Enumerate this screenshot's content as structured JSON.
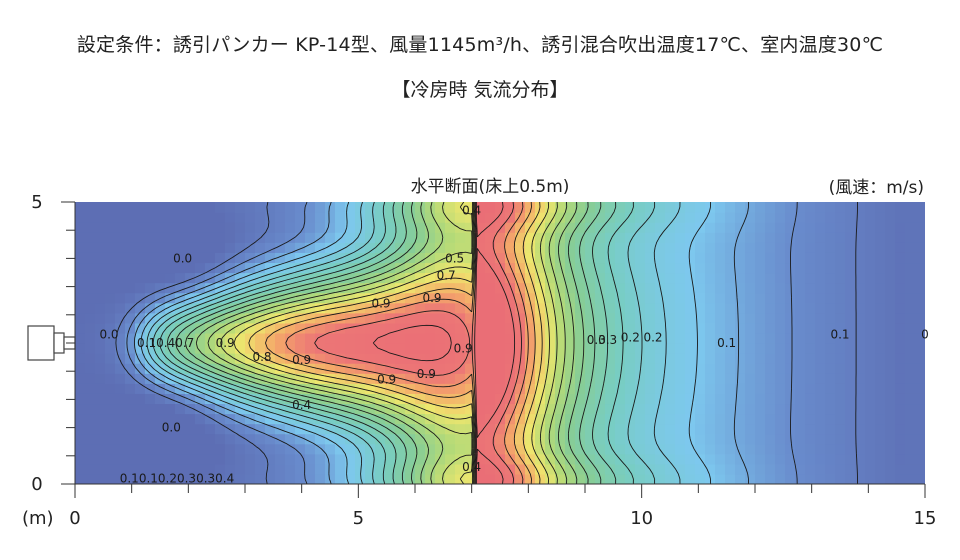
{
  "header": {
    "condition": "設定条件：誘引パンカー KP-14型、風量1145m³/h、誘引混合吹出温度17℃、室内温度30℃",
    "mode": "【冷房時 気流分布】"
  },
  "chart_data": {
    "type": "heatmap",
    "title": "水平断面(床上0.5m)",
    "unit": "(風速：m/s)",
    "xunit": "(m)",
    "xlim": [
      0,
      15
    ],
    "ylim": [
      0,
      5
    ],
    "xticks": [
      0,
      5,
      10,
      15
    ],
    "yticks": [
      0,
      5
    ],
    "x_tick_labels": [
      "0",
      "5",
      "10",
      "15"
    ],
    "y_tick_labels": [
      "0",
      "5"
    ],
    "jet": {
      "outlet_x": 0,
      "outlet_y": 2.5,
      "core_velocity": 0.9
    },
    "contour_labels": [
      {
        "x": 0.6,
        "y": 2.65,
        "text": "0.0"
      },
      {
        "x": 1.9,
        "y": 4.0,
        "text": "0.0"
      },
      {
        "x": 1.7,
        "y": 1.0,
        "text": "0.0"
      },
      {
        "x": 1.6,
        "y": 2.5,
        "text": "0.10.40.7"
      },
      {
        "x": 2.65,
        "y": 2.5,
        "text": "0.9"
      },
      {
        "x": 5.4,
        "y": 3.2,
        "text": "0.9"
      },
      {
        "x": 3.3,
        "y": 2.25,
        "text": "0.8"
      },
      {
        "x": 4.0,
        "y": 2.2,
        "text": "0.9"
      },
      {
        "x": 5.5,
        "y": 1.85,
        "text": "0.9"
      },
      {
        "x": 6.2,
        "y": 1.95,
        "text": "0.9"
      },
      {
        "x": 6.3,
        "y": 3.3,
        "text": "0.9"
      },
      {
        "x": 6.7,
        "y": 4.0,
        "text": "0.5"
      },
      {
        "x": 6.55,
        "y": 3.7,
        "text": "0.7"
      },
      {
        "x": 6.85,
        "y": 2.4,
        "text": "0.9"
      },
      {
        "x": 4.0,
        "y": 1.4,
        "text": "0.4"
      },
      {
        "x": 7.0,
        "y": 4.85,
        "text": "0.4"
      },
      {
        "x": 7.0,
        "y": 0.3,
        "text": "0.4"
      },
      {
        "x": 9.2,
        "y": 2.55,
        "text": "0.3"
      },
      {
        "x": 9.4,
        "y": 2.55,
        "text": "0.3"
      },
      {
        "x": 9.8,
        "y": 2.6,
        "text": "0.2"
      },
      {
        "x": 10.2,
        "y": 2.6,
        "text": "0.2"
      },
      {
        "x": 11.5,
        "y": 2.5,
        "text": "0.1"
      },
      {
        "x": 13.5,
        "y": 2.65,
        "text": "0.1"
      },
      {
        "x": 15.0,
        "y": 2.65,
        "text": "0"
      },
      {
        "x": 1.8,
        "y": 0.1,
        "text": "0.10.10.20.30.30.4"
      }
    ]
  }
}
